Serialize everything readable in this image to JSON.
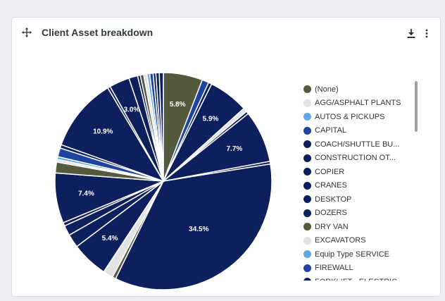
{
  "card": {
    "title": "Client Asset breakdown",
    "move_icon": "move-arrows-icon",
    "download_icon": "download-icon",
    "more_icon": "kebab-menu-icon"
  },
  "colors": {
    "navy": "#0d1f5c",
    "olive": "#545a3d",
    "light_gray": "#e2e3e5",
    "light_blue": "#5fa8e0",
    "royal_blue": "#1f43a0"
  },
  "legend": [
    {
      "label": "(None)",
      "color": "#545a3d"
    },
    {
      "label": "AGG/ASPHALT PLANTS",
      "color": "#e2e3e5"
    },
    {
      "label": "AUTOS & PICKUPS",
      "color": "#5fa8e0"
    },
    {
      "label": "CAPITAL",
      "color": "#1f43a0"
    },
    {
      "label": "COACH/SHUTTLE BU...",
      "color": "#0d1f5c"
    },
    {
      "label": "CONSTRUCTION OT...",
      "color": "#0d1f5c"
    },
    {
      "label": "COPIER",
      "color": "#0d1f5c"
    },
    {
      "label": "CRANES",
      "color": "#0d1f5c"
    },
    {
      "label": "DESKTOP",
      "color": "#0d1f5c"
    },
    {
      "label": "DOZERS",
      "color": "#0d1f5c"
    },
    {
      "label": "DRY VAN",
      "color": "#545a3d"
    },
    {
      "label": "EXCAVATORS",
      "color": "#e2e3e5"
    },
    {
      "label": "Equip Type SERVICE",
      "color": "#5fa8e0"
    },
    {
      "label": "FIREWALL",
      "color": "#1f43a0"
    },
    {
      "label": "FORKLIFT - ELECTRIC",
      "color": "#0d1f5c"
    }
  ],
  "chart_data": {
    "type": "pie",
    "start_angle_deg": 0,
    "slices": [
      {
        "value": 5.8,
        "color": "#545a3d",
        "label": "5.8%"
      },
      {
        "value": 1.0,
        "color": "#1f43a0",
        "label": ""
      },
      {
        "value": 0.5,
        "color": "#0d1f5c",
        "label": ""
      },
      {
        "value": 5.9,
        "color": "#0d1f5c",
        "label": "5.9%"
      },
      {
        "value": 0.6,
        "color": "#e2e3e5",
        "label": ""
      },
      {
        "value": 0.4,
        "color": "#0d1f5c",
        "label": ""
      },
      {
        "value": 7.7,
        "color": "#0d1f5c",
        "label": "7.7%"
      },
      {
        "value": 0.4,
        "color": "#0d1f5c",
        "label": ""
      },
      {
        "value": 34.5,
        "color": "#0d1f5c",
        "label": "34.5%"
      },
      {
        "value": 0.5,
        "color": "#545a3d",
        "label": ""
      },
      {
        "value": 1.5,
        "color": "#e2e3e5",
        "label": ""
      },
      {
        "value": 5.4,
        "color": "#0d1f5c",
        "label": "5.4%"
      },
      {
        "value": 2.0,
        "color": "#0d1f5c",
        "label": ""
      },
      {
        "value": 1.5,
        "color": "#0d1f5c",
        "label": ""
      },
      {
        "value": 0.5,
        "color": "#0d1f5c",
        "label": ""
      },
      {
        "value": 7.4,
        "color": "#0d1f5c",
        "label": "7.4%"
      },
      {
        "value": 1.6,
        "color": "#545a3d",
        "label": ""
      },
      {
        "value": 0.4,
        "color": "#e2e3e5",
        "label": ""
      },
      {
        "value": 0.4,
        "color": "#5fa8e0",
        "label": ""
      },
      {
        "value": 1.3,
        "color": "#1f43a0",
        "label": ""
      },
      {
        "value": 0.5,
        "color": "#0d1f5c",
        "label": ""
      },
      {
        "value": 10.9,
        "color": "#0d1f5c",
        "label": "10.9%"
      },
      {
        "value": 0.4,
        "color": "#0d1f5c",
        "label": ""
      },
      {
        "value": 3.0,
        "color": "#0d1f5c",
        "label": "3.0%"
      },
      {
        "value": 1.3,
        "color": "#0d1f5c",
        "label": ""
      },
      {
        "value": 0.4,
        "color": "#0d1f5c",
        "label": ""
      },
      {
        "value": 0.5,
        "color": "#545a3d",
        "label": ""
      },
      {
        "value": 0.5,
        "color": "#e2e3e5",
        "label": ""
      },
      {
        "value": 0.4,
        "color": "#5fa8e0",
        "label": ""
      },
      {
        "value": 0.5,
        "color": "#1f43a0",
        "label": ""
      },
      {
        "value": 0.4,
        "color": "#0d1f5c",
        "label": ""
      },
      {
        "value": 0.5,
        "color": "#0d1f5c",
        "label": ""
      },
      {
        "value": 0.6,
        "color": "#0d1f5c",
        "label": ""
      }
    ]
  }
}
